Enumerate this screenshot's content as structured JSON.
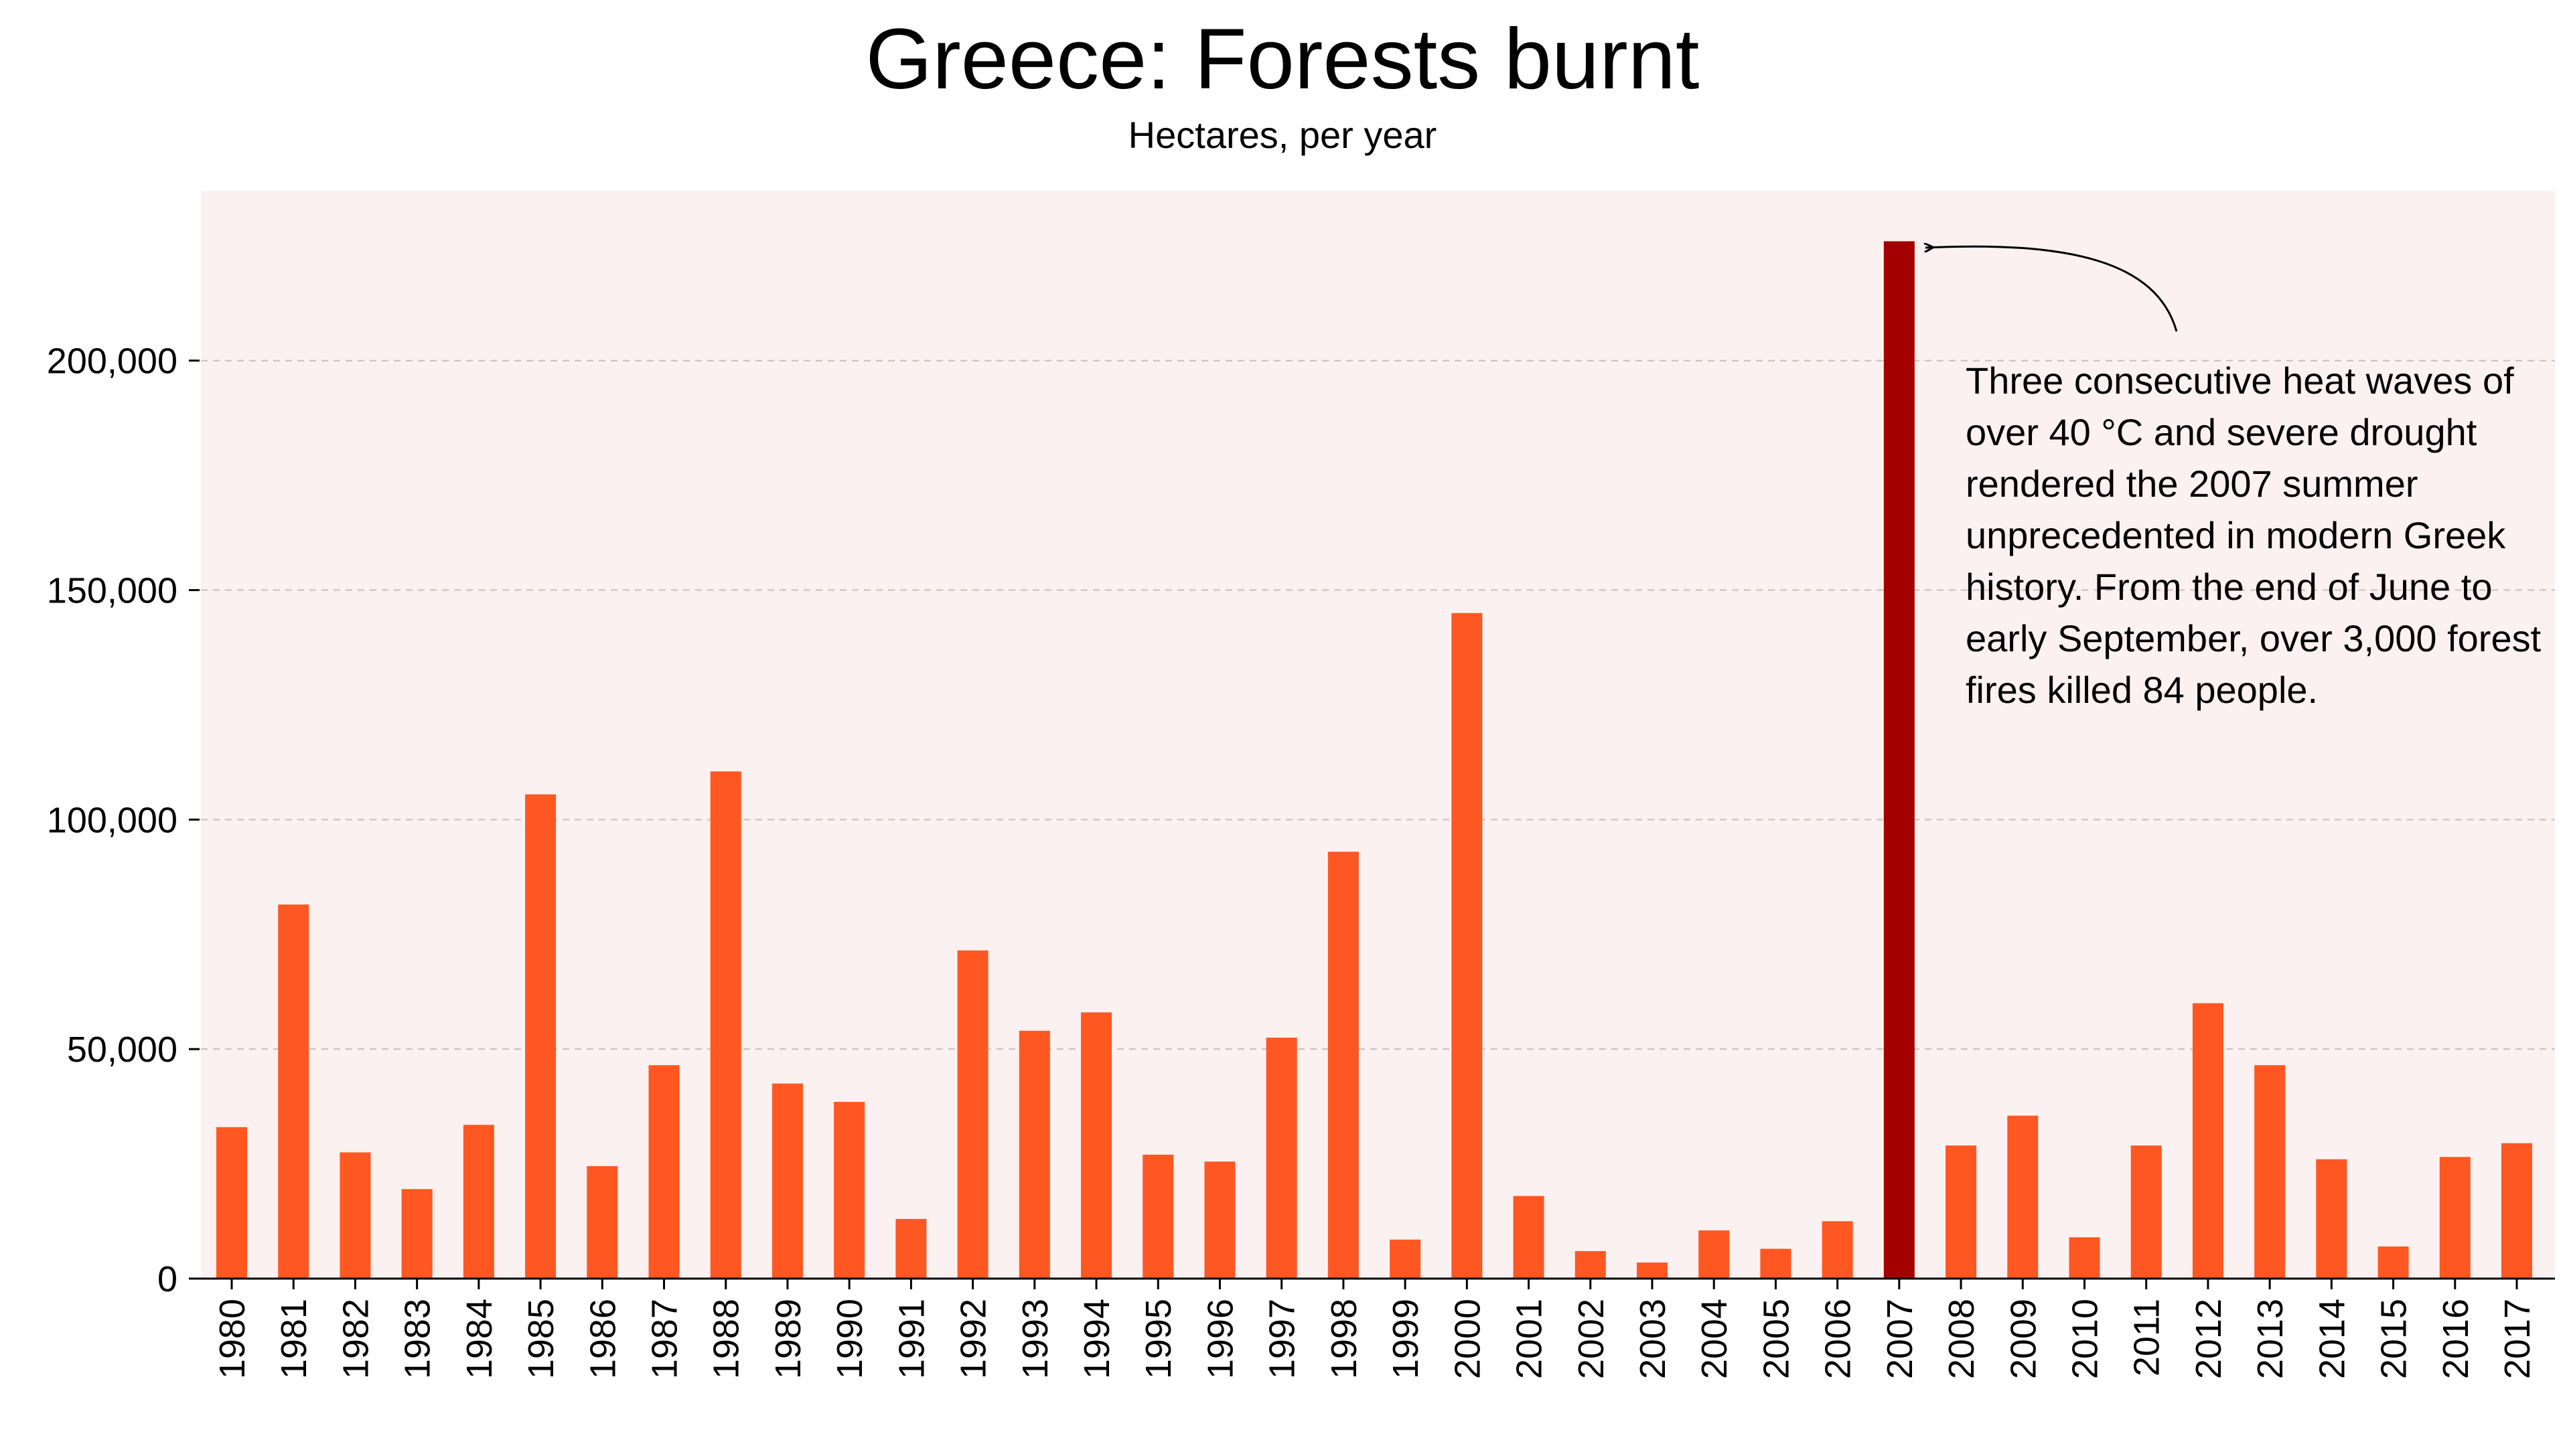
{
  "title": "Greece: Forests burnt",
  "subtitle": "Hectares, per year",
  "annotation": "Three consecutive heat waves of over 40 °C  and severe drought rendered the 2007 summer unprecedented in modern Greek history. From the end of June to early September, over 3,000 forest fires killed 84 people.",
  "colors": {
    "bar": "#ff5722",
    "highlight": "#a50000",
    "plot_background": "#fbf1f0",
    "grid": "#cdbcbc"
  },
  "chart_data": {
    "type": "bar",
    "title": "Greece: Forests burnt",
    "subtitle": "Hectares, per year",
    "xlabel": "",
    "ylabel": "",
    "ylim": [
      0,
      237000
    ],
    "yticks": [
      0,
      50000,
      100000,
      150000,
      200000
    ],
    "ytick_labels": [
      "0",
      "50,000",
      "100,000",
      "150,000",
      "200,000"
    ],
    "grid": true,
    "highlight_category": "2007",
    "categories": [
      "1980",
      "1981",
      "1982",
      "1983",
      "1984",
      "1985",
      "1986",
      "1987",
      "1988",
      "1989",
      "1990",
      "1991",
      "1992",
      "1993",
      "1994",
      "1995",
      "1996",
      "1997",
      "1998",
      "1999",
      "2000",
      "2001",
      "2002",
      "2003",
      "2004",
      "2005",
      "2006",
      "2007",
      "2008",
      "2009",
      "2010",
      "2011",
      "2012",
      "2013",
      "2014",
      "2015",
      "2016",
      "2017"
    ],
    "values": [
      33000,
      81500,
      27500,
      19500,
      33500,
      105500,
      24500,
      46500,
      110500,
      42500,
      38500,
      13000,
      71500,
      54000,
      58000,
      27000,
      25500,
      52500,
      93000,
      8500,
      145000,
      18000,
      6000,
      3500,
      10500,
      6500,
      12500,
      226000,
      29000,
      35500,
      9000,
      29000,
      60000,
      46500,
      26000,
      7000,
      26500,
      29500
    ]
  }
}
